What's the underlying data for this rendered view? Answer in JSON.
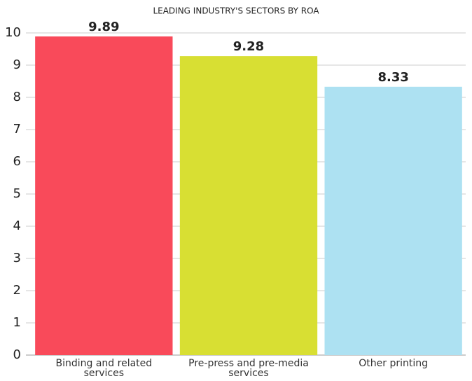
{
  "chart_data": {
    "type": "bar",
    "title": "LEADING INDUSTRY'S SECTORS BY ROA",
    "categories": [
      "Binding and related services",
      "Pre-press and pre-media services",
      "Other printing"
    ],
    "values": [
      9.89,
      9.28,
      8.33
    ],
    "colors": [
      "#f94a5a",
      "#d8df33",
      "#ade1f2"
    ],
    "ylim": [
      0,
      10
    ],
    "yticks": [
      0,
      1,
      2,
      3,
      4,
      5,
      6,
      7,
      8,
      9,
      10
    ],
    "grid": true
  }
}
